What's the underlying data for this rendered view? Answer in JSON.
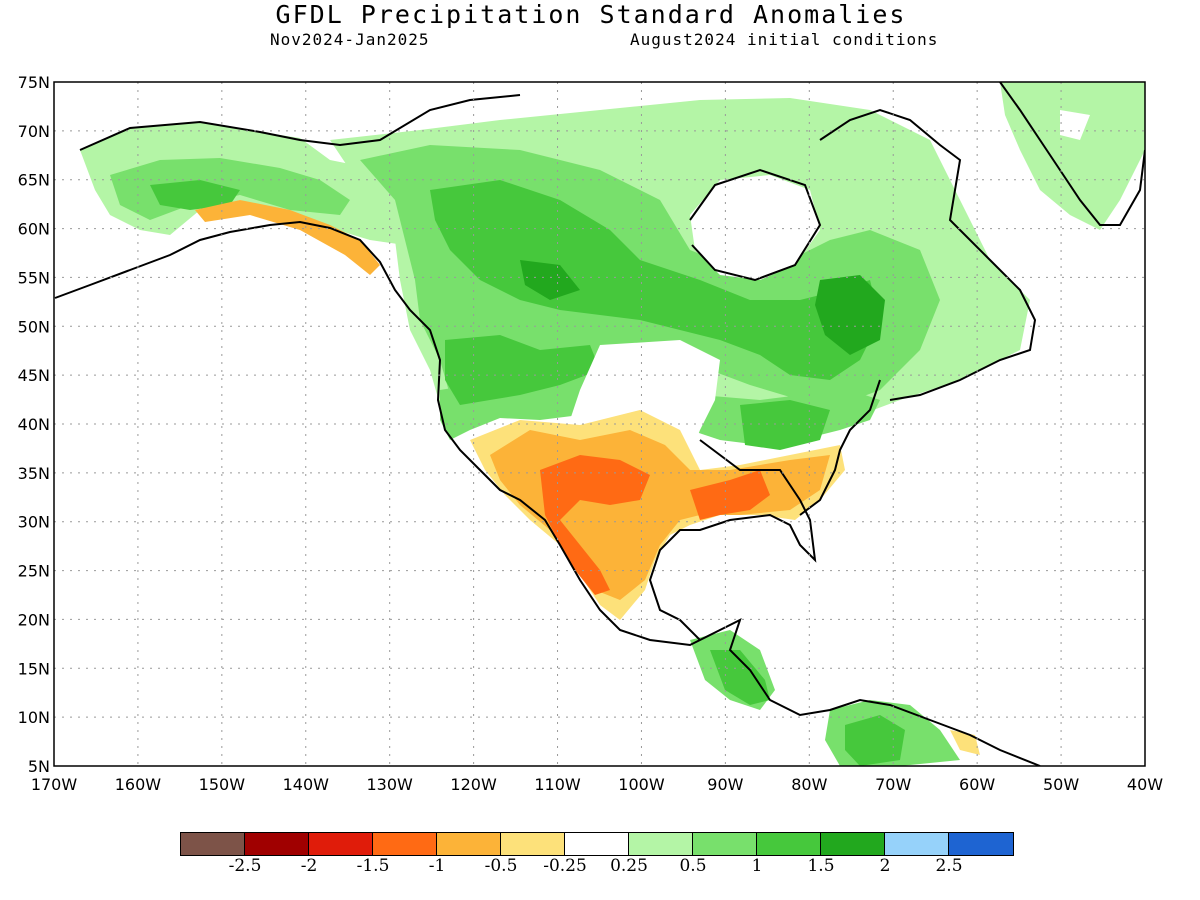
{
  "title": "GFDL Precipitation Standard Anomalies",
  "subtitle_left": "Nov2024-Jan2025",
  "subtitle_right": "August2024 initial conditions",
  "map": {
    "lat_labels": [
      "75N",
      "70N",
      "65N",
      "60N",
      "55N",
      "50N",
      "45N",
      "40N",
      "35N",
      "30N",
      "25N",
      "20N",
      "15N",
      "10N",
      "5N"
    ],
    "lon_labels": [
      "170W",
      "160W",
      "150W",
      "140W",
      "130W",
      "120W",
      "110W",
      "100W",
      "90W",
      "80W",
      "70W",
      "60W",
      "50W",
      "40W"
    ],
    "lat_range": [
      5,
      75
    ],
    "lon_range": [
      -170,
      -40
    ],
    "grid": "dotted"
  },
  "legend": {
    "colors": [
      "#7d5348",
      "#a00000",
      "#e01c0a",
      "#ff6a14",
      "#fcb338",
      "#fde17a",
      "#ffffff",
      "#b4f5a6",
      "#78e06c",
      "#46c83c",
      "#22a81e",
      "#96d2fa",
      "#1e64d2"
    ],
    "labels": [
      "-2.5",
      "-2",
      "-1.5",
      "-1",
      "-0.5",
      "-0.25",
      "0.25",
      "0.5",
      "1",
      "1.5",
      "2",
      "2.5"
    ]
  }
}
